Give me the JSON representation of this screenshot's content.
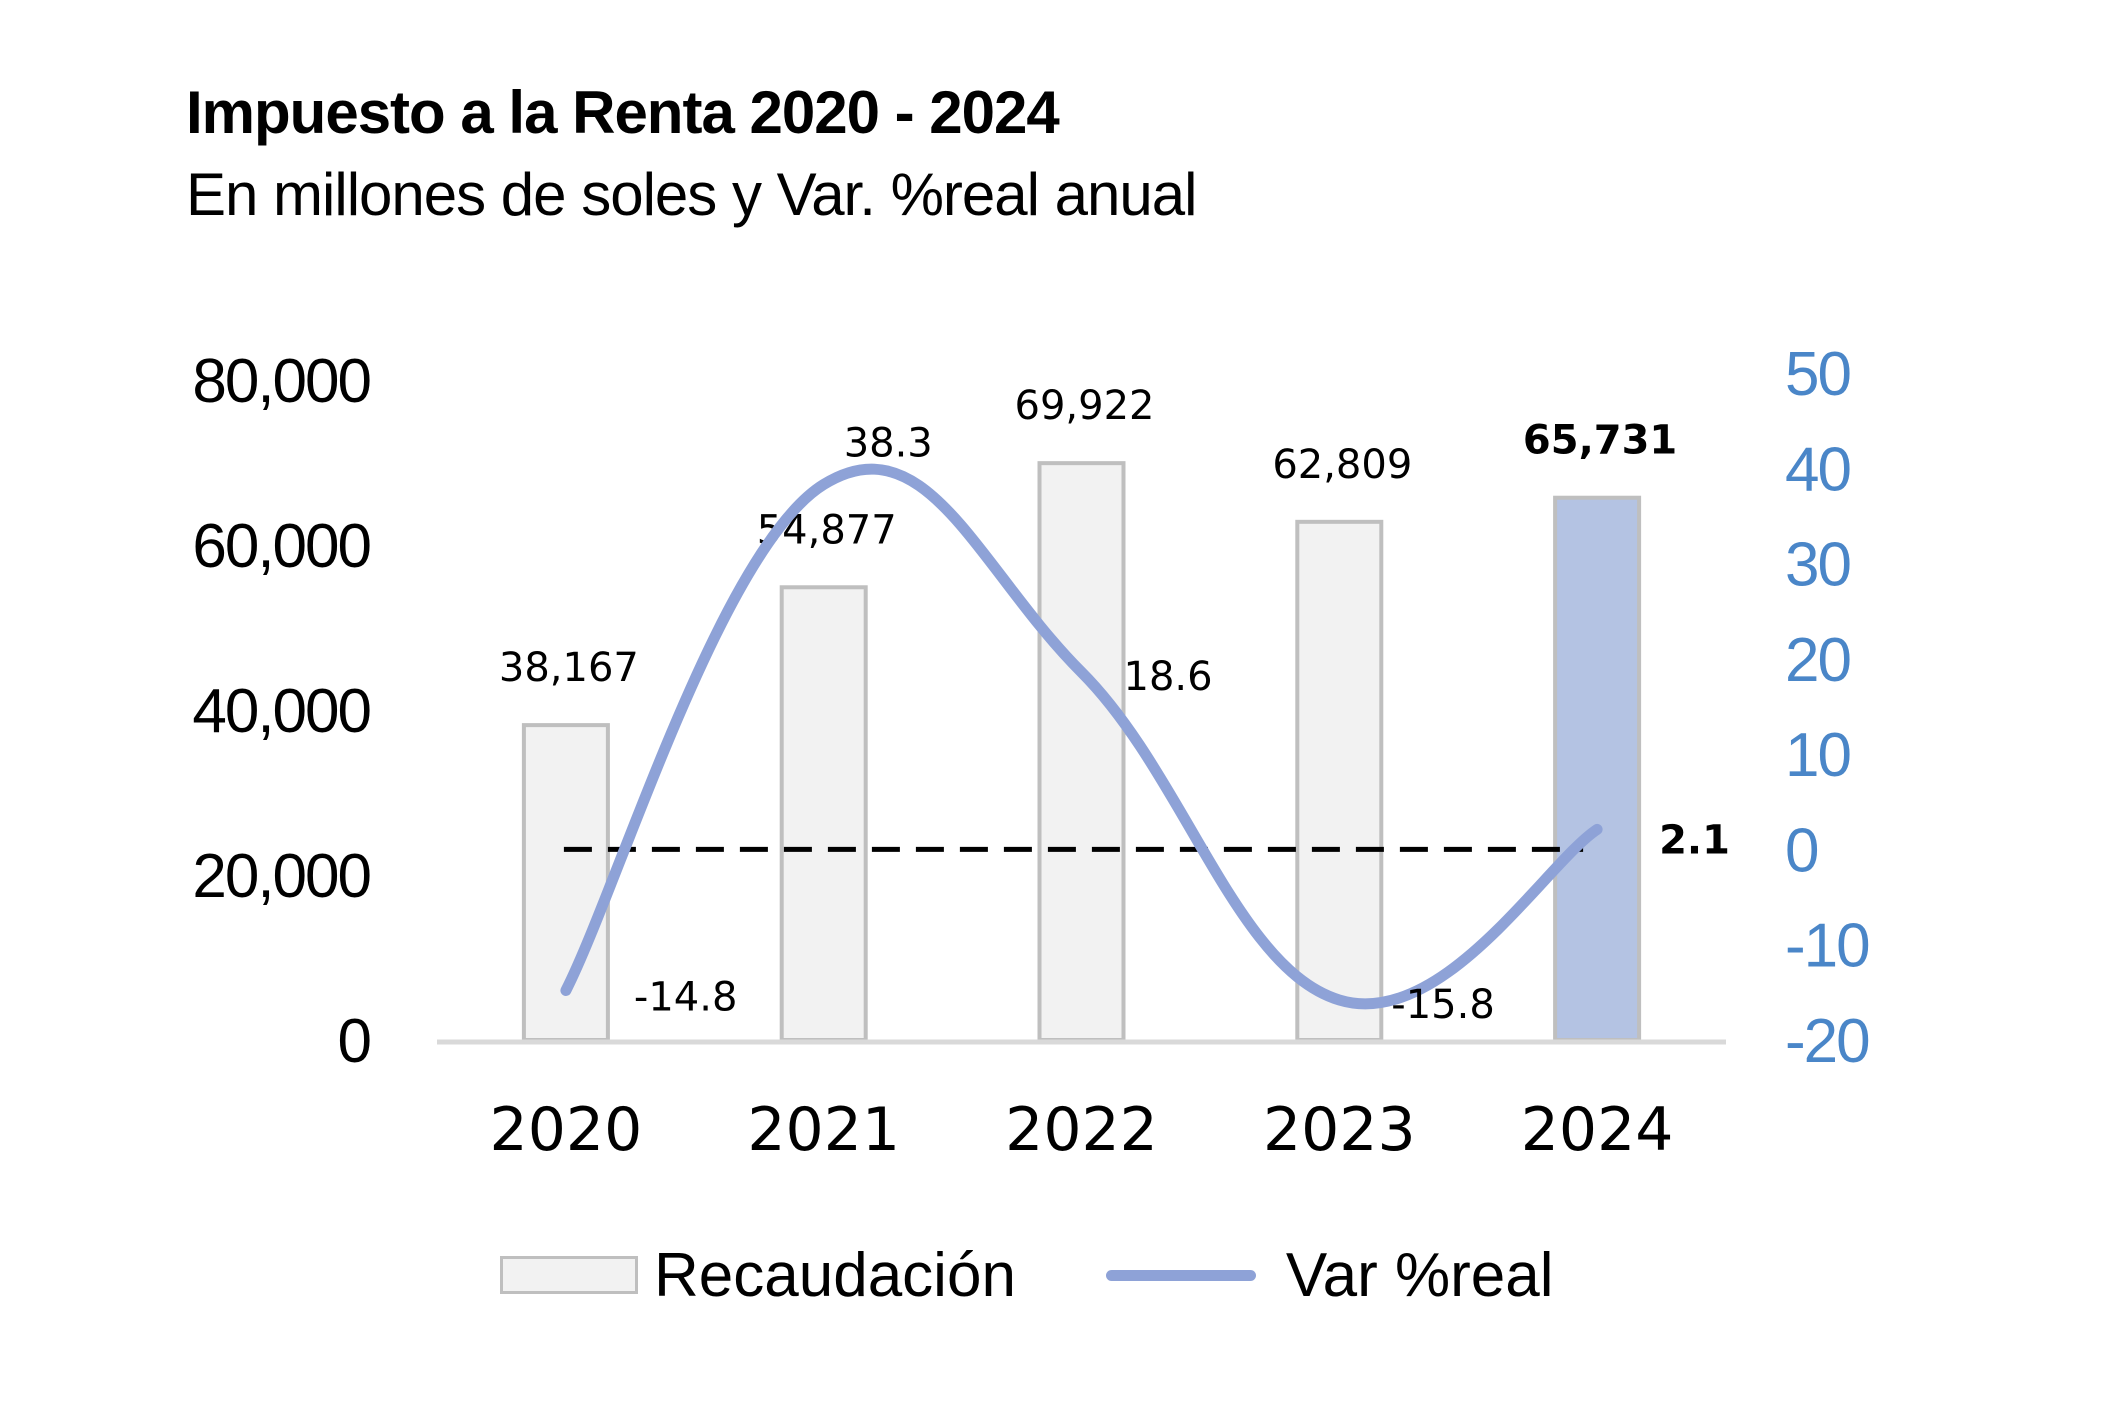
{
  "chart_data": {
    "type": "bar",
    "title": "Impuesto a la Renta 2020 - 2024",
    "subtitle": "En millones de soles y Var. %real anual",
    "categories": [
      "2020",
      "2021",
      "2022",
      "2023",
      "2024"
    ],
    "series": [
      {
        "name": "Recaudación",
        "type": "bar",
        "axis": "left",
        "values": [
          38167,
          54877,
          69922,
          62809,
          65731
        ],
        "labels": [
          "38,167",
          "54,877",
          "69,922",
          "62,809",
          "65,731"
        ],
        "color": "#f2f2f2",
        "border_color": "#bfbfbf",
        "highlight_color": "#b4c3e3",
        "highlight_index": 4
      },
      {
        "name": "Var %real",
        "type": "line",
        "axis": "right",
        "smooth": true,
        "values": [
          -14.8,
          38.3,
          18.6,
          -15.8,
          2.1
        ],
        "labels": [
          "-14.8",
          "38.3",
          "18.6",
          "-15.8",
          "2.1"
        ],
        "color": "#8ea2d7"
      }
    ],
    "y_left": {
      "min": 0,
      "max": 80000,
      "ticks": [
        "0",
        "20,000",
        "40,000",
        "60,000",
        "80,000"
      ]
    },
    "y_right": {
      "min": -20,
      "max": 50,
      "ticks": [
        "-20",
        "-10",
        "0",
        "10",
        "20",
        "30",
        "40",
        "50"
      ],
      "color": "#4a86c8"
    },
    "reference_line": {
      "axis": "right",
      "value": 0,
      "style": "dashed",
      "color": "#000000"
    },
    "legend": {
      "position": "bottom",
      "items": [
        "Recaudación",
        "Var %real"
      ]
    },
    "grid": false
  }
}
